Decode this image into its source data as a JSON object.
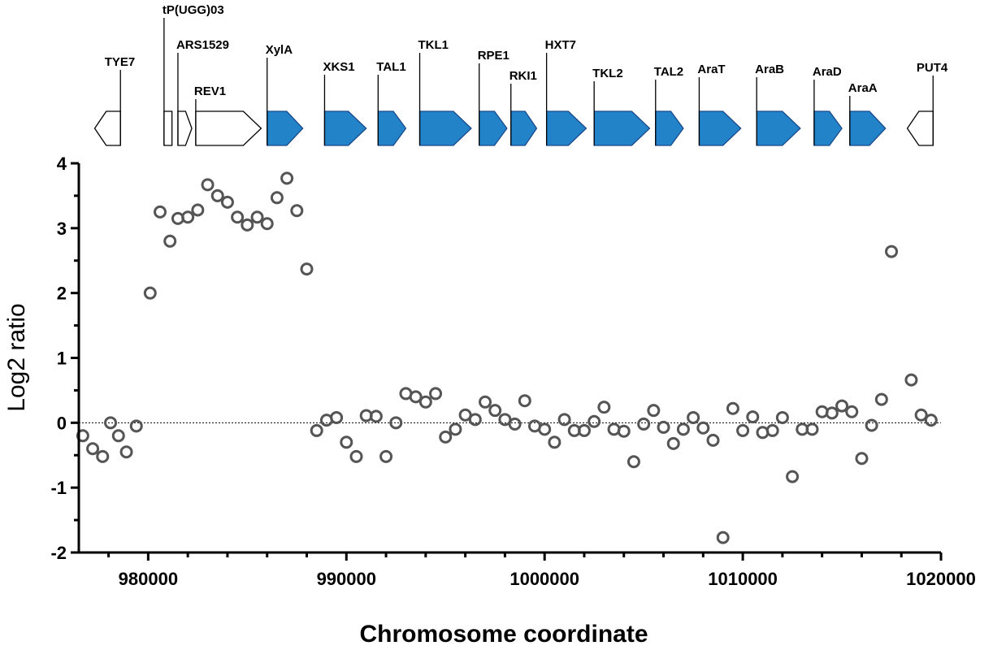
{
  "chart_data": {
    "type": "scatter",
    "title": "",
    "xlabel": "Chromosome coordinate",
    "ylabel": "Log2 ratio",
    "xlim": [
      976500,
      1020000
    ],
    "ylim": [
      -2,
      4
    ],
    "x_ticks": [
      980000,
      990000,
      1000000,
      1010000,
      1020000
    ],
    "y_ticks": [
      -2,
      -1,
      0,
      1,
      2,
      3,
      4
    ],
    "reference_line": 0,
    "marker_color": "#555555",
    "points": [
      [
        976700,
        -0.2
      ],
      [
        977200,
        -0.4
      ],
      [
        977700,
        -0.52
      ],
      [
        978100,
        0.0
      ],
      [
        978500,
        -0.2
      ],
      [
        978900,
        -0.45
      ],
      [
        979400,
        -0.05
      ],
      [
        980100,
        2.0
      ],
      [
        980600,
        3.25
      ],
      [
        981100,
        2.8
      ],
      [
        981500,
        3.15
      ],
      [
        982000,
        3.17
      ],
      [
        982500,
        3.28
      ],
      [
        983000,
        3.67
      ],
      [
        983500,
        3.5
      ],
      [
        984000,
        3.4
      ],
      [
        984500,
        3.17
      ],
      [
        985000,
        3.05
      ],
      [
        985500,
        3.17
      ],
      [
        986000,
        3.07
      ],
      [
        986500,
        3.47
      ],
      [
        987000,
        3.77
      ],
      [
        987500,
        3.27
      ],
      [
        988000,
        2.37
      ],
      [
        988500,
        -0.12
      ],
      [
        989000,
        0.04
      ],
      [
        989500,
        0.08
      ],
      [
        990000,
        -0.3
      ],
      [
        990500,
        -0.52
      ],
      [
        991000,
        0.11
      ],
      [
        991500,
        0.1
      ],
      [
        992000,
        -0.52
      ],
      [
        992500,
        0.0
      ],
      [
        993000,
        0.45
      ],
      [
        993500,
        0.4
      ],
      [
        994000,
        0.32
      ],
      [
        994500,
        0.45
      ],
      [
        995000,
        -0.22
      ],
      [
        995500,
        -0.1
      ],
      [
        996000,
        0.12
      ],
      [
        996500,
        0.05
      ],
      [
        997000,
        0.32
      ],
      [
        997500,
        0.19
      ],
      [
        998000,
        0.05
      ],
      [
        998500,
        -0.02
      ],
      [
        999000,
        0.34
      ],
      [
        999500,
        -0.05
      ],
      [
        1000000,
        -0.1
      ],
      [
        1000500,
        -0.3
      ],
      [
        1001000,
        0.05
      ],
      [
        1001500,
        -0.12
      ],
      [
        1002000,
        -0.12
      ],
      [
        1002500,
        0.02
      ],
      [
        1003000,
        0.24
      ],
      [
        1003500,
        -0.1
      ],
      [
        1004000,
        -0.13
      ],
      [
        1004500,
        -0.6
      ],
      [
        1005000,
        -0.02
      ],
      [
        1005500,
        0.19
      ],
      [
        1006000,
        -0.07
      ],
      [
        1006500,
        -0.32
      ],
      [
        1007000,
        -0.1
      ],
      [
        1007500,
        0.08
      ],
      [
        1008000,
        -0.08
      ],
      [
        1008500,
        -0.27
      ],
      [
        1009000,
        -1.77
      ],
      [
        1009500,
        0.22
      ],
      [
        1010000,
        -0.12
      ],
      [
        1010500,
        0.09
      ],
      [
        1011000,
        -0.15
      ],
      [
        1011500,
        -0.12
      ],
      [
        1012000,
        0.08
      ],
      [
        1012500,
        -0.83
      ],
      [
        1013000,
        -0.1
      ],
      [
        1013500,
        -0.1
      ],
      [
        1014000,
        0.17
      ],
      [
        1014500,
        0.15
      ],
      [
        1015000,
        0.26
      ],
      [
        1015500,
        0.17
      ],
      [
        1016000,
        -0.55
      ],
      [
        1016500,
        -0.04
      ],
      [
        1017000,
        0.36
      ],
      [
        1017500,
        2.64
      ],
      [
        1018500,
        0.66
      ],
      [
        1019000,
        0.12
      ],
      [
        1019500,
        0.04
      ]
    ],
    "gene_track": [
      {
        "name": "TYE7",
        "start": 977300,
        "end": 978600,
        "strand": "-",
        "highlight": false
      },
      {
        "name": "tP(UGG)03",
        "start": 980800,
        "end": 981200,
        "strand": "none",
        "highlight": false
      },
      {
        "name": "ARS1529",
        "start": 981500,
        "end": 982200,
        "strand": "+",
        "highlight": false
      },
      {
        "name": "REV1",
        "start": 982400,
        "end": 985700,
        "strand": "+",
        "highlight": false
      },
      {
        "name": "XylA",
        "start": 986000,
        "end": 987800,
        "strand": "+",
        "highlight": true
      },
      {
        "name": "XKS1",
        "start": 988900,
        "end": 991000,
        "strand": "+",
        "highlight": true
      },
      {
        "name": "TAL1",
        "start": 991600,
        "end": 993000,
        "strand": "+",
        "highlight": true
      },
      {
        "name": "TKL1",
        "start": 993700,
        "end": 996300,
        "strand": "+",
        "highlight": true
      },
      {
        "name": "RPE1",
        "start": 996700,
        "end": 998100,
        "strand": "+",
        "highlight": true
      },
      {
        "name": "RKI1",
        "start": 998300,
        "end": 999600,
        "strand": "+",
        "highlight": true
      },
      {
        "name": "HXT7",
        "start": 1000100,
        "end": 1002100,
        "strand": "+",
        "highlight": true
      },
      {
        "name": "TKL2",
        "start": 1002500,
        "end": 1005300,
        "strand": "+",
        "highlight": true
      },
      {
        "name": "TAL2",
        "start": 1005600,
        "end": 1007000,
        "strand": "+",
        "highlight": true
      },
      {
        "name": "AraT",
        "start": 1007800,
        "end": 1009900,
        "strand": "+",
        "highlight": true
      },
      {
        "name": "AraB",
        "start": 1010700,
        "end": 1012900,
        "strand": "+",
        "highlight": true
      },
      {
        "name": "AraD",
        "start": 1013600,
        "end": 1015000,
        "strand": "+",
        "highlight": true
      },
      {
        "name": "AraA",
        "start": 1015400,
        "end": 1017200,
        "strand": "+",
        "highlight": true
      },
      {
        "name": "PUT4",
        "start": 1018300,
        "end": 1019600,
        "strand": "-",
        "highlight": false
      }
    ],
    "highlight_color": "#2383c9",
    "highlight_stroke": "#1a4a8a"
  }
}
